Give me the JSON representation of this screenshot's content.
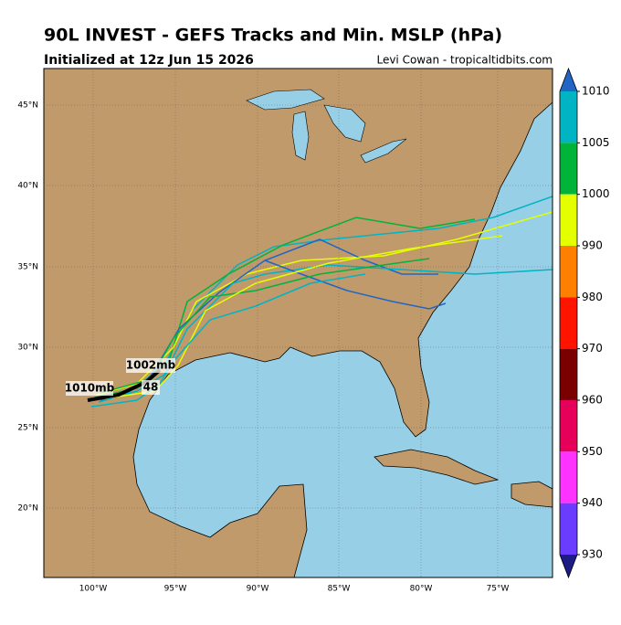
{
  "header": {
    "title": "90L INVEST - GEFS Tracks and Min. MSLP (hPa)",
    "subtitle": "Initialized at 12z Jun 15 2026",
    "credit": "Levi Cowan - tropicaltidbits.com"
  },
  "map": {
    "lat_labels": [
      "45°N",
      "40°N",
      "35°N",
      "30°N",
      "25°N",
      "20°N"
    ],
    "lon_labels": [
      "100°W",
      "95°W",
      "90°W",
      "85°W",
      "80°W",
      "75°W"
    ],
    "annotations": [
      "1010mb",
      "1002mb",
      "48"
    ]
  },
  "colorbar": {
    "labels": [
      "1010",
      "1005",
      "1000",
      "990",
      "980",
      "970",
      "960",
      "950",
      "940",
      "930"
    ],
    "colors": [
      "#00b4c4",
      "#00b43a",
      "#e4ff00",
      "#ff7f00",
      "#ff1400",
      "#7a0000",
      "#e6005a",
      "#ff33ff",
      "#6a3cff"
    ],
    "end_colors": [
      "#2166c4",
      "#1c1c84"
    ]
  }
}
